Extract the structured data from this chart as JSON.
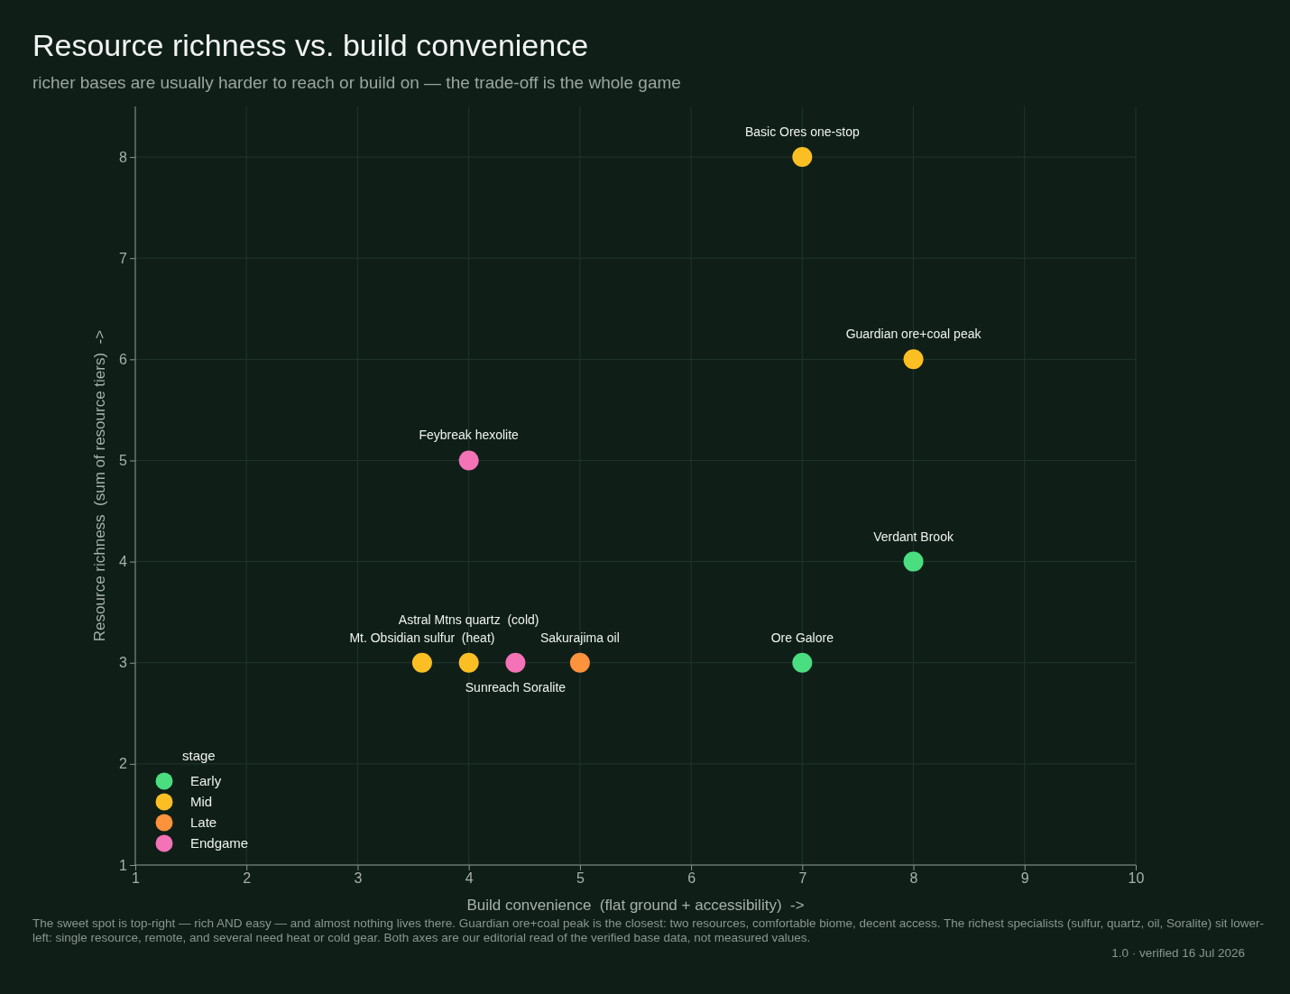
{
  "chart_data": {
    "type": "scatter",
    "title": "Resource richness vs. build convenience",
    "subtitle": "richer bases are usually harder to reach or build on — the trade-off is the whole game",
    "xlabel": "Build convenience  (flat ground + accessibility)  ->",
    "ylabel": "Resource richness  (sum of resource tiers)  ->",
    "legend_title": "stage",
    "legend": "bottom left",
    "grid": true,
    "marker": "circle",
    "xlim": [
      1,
      10
    ],
    "xticks": [
      1,
      2,
      3,
      4,
      5,
      6,
      7,
      8,
      9,
      10
    ],
    "ylim": [
      1,
      8.5
    ],
    "yticks": [
      1,
      2,
      3,
      4,
      5,
      6,
      7,
      8
    ],
    "series": [
      {
        "name": "Early",
        "color": "#4ade80",
        "x": [
          8,
          7
        ],
        "values": [
          4,
          3
        ]
      },
      {
        "name": "Mid",
        "color": "#fbbf24",
        "x": [
          7,
          8,
          3.58,
          4
        ],
        "values": [
          8,
          6,
          3,
          3
        ]
      },
      {
        "name": "Late",
        "color": "#fb923c",
        "x": [
          5
        ],
        "values": [
          3
        ]
      },
      {
        "name": "Endgame",
        "color": "#f472b6",
        "x": [
          4,
          4.42
        ],
        "values": [
          5,
          3
        ]
      }
    ],
    "annotations": [
      {
        "text": "Basic Ores one-stop",
        "x": 7,
        "y": 8
      },
      {
        "text": "Guardian ore+coal peak",
        "x": 8,
        "y": 6
      },
      {
        "text": "Feybreak hexolite",
        "x": 4,
        "y": 5
      },
      {
        "text": "Verdant Brook",
        "x": 8,
        "y": 4
      },
      {
        "text": "Ore Galore",
        "x": 7,
        "y": 3
      },
      {
        "text": "Mt. Obsidian sulfur  (heat)",
        "x": 3.58,
        "y": 3
      },
      {
        "text": "Astral Mtns quartz  (cold)",
        "x": 4,
        "y": 3
      },
      {
        "text": "Sunreach Soralite",
        "x": 4.42,
        "y": 3
      },
      {
        "text": "Sakurajima oil",
        "x": 5,
        "y": 3
      },
      "The sweet spot is top-right — rich AND easy — and almost nothing lives there. Guardian ore+coal peak is the closest: two resources, comfortable biome, decent access. The richest specialists (sulfur, quartz, oil, Soralite) sit lower-left: single resource, remote, and several need heat or cold gear. Both axes are our editorial read of the verified base data, not measured values.",
      "1.0 · verified 16 Jul 2026"
    ]
  }
}
